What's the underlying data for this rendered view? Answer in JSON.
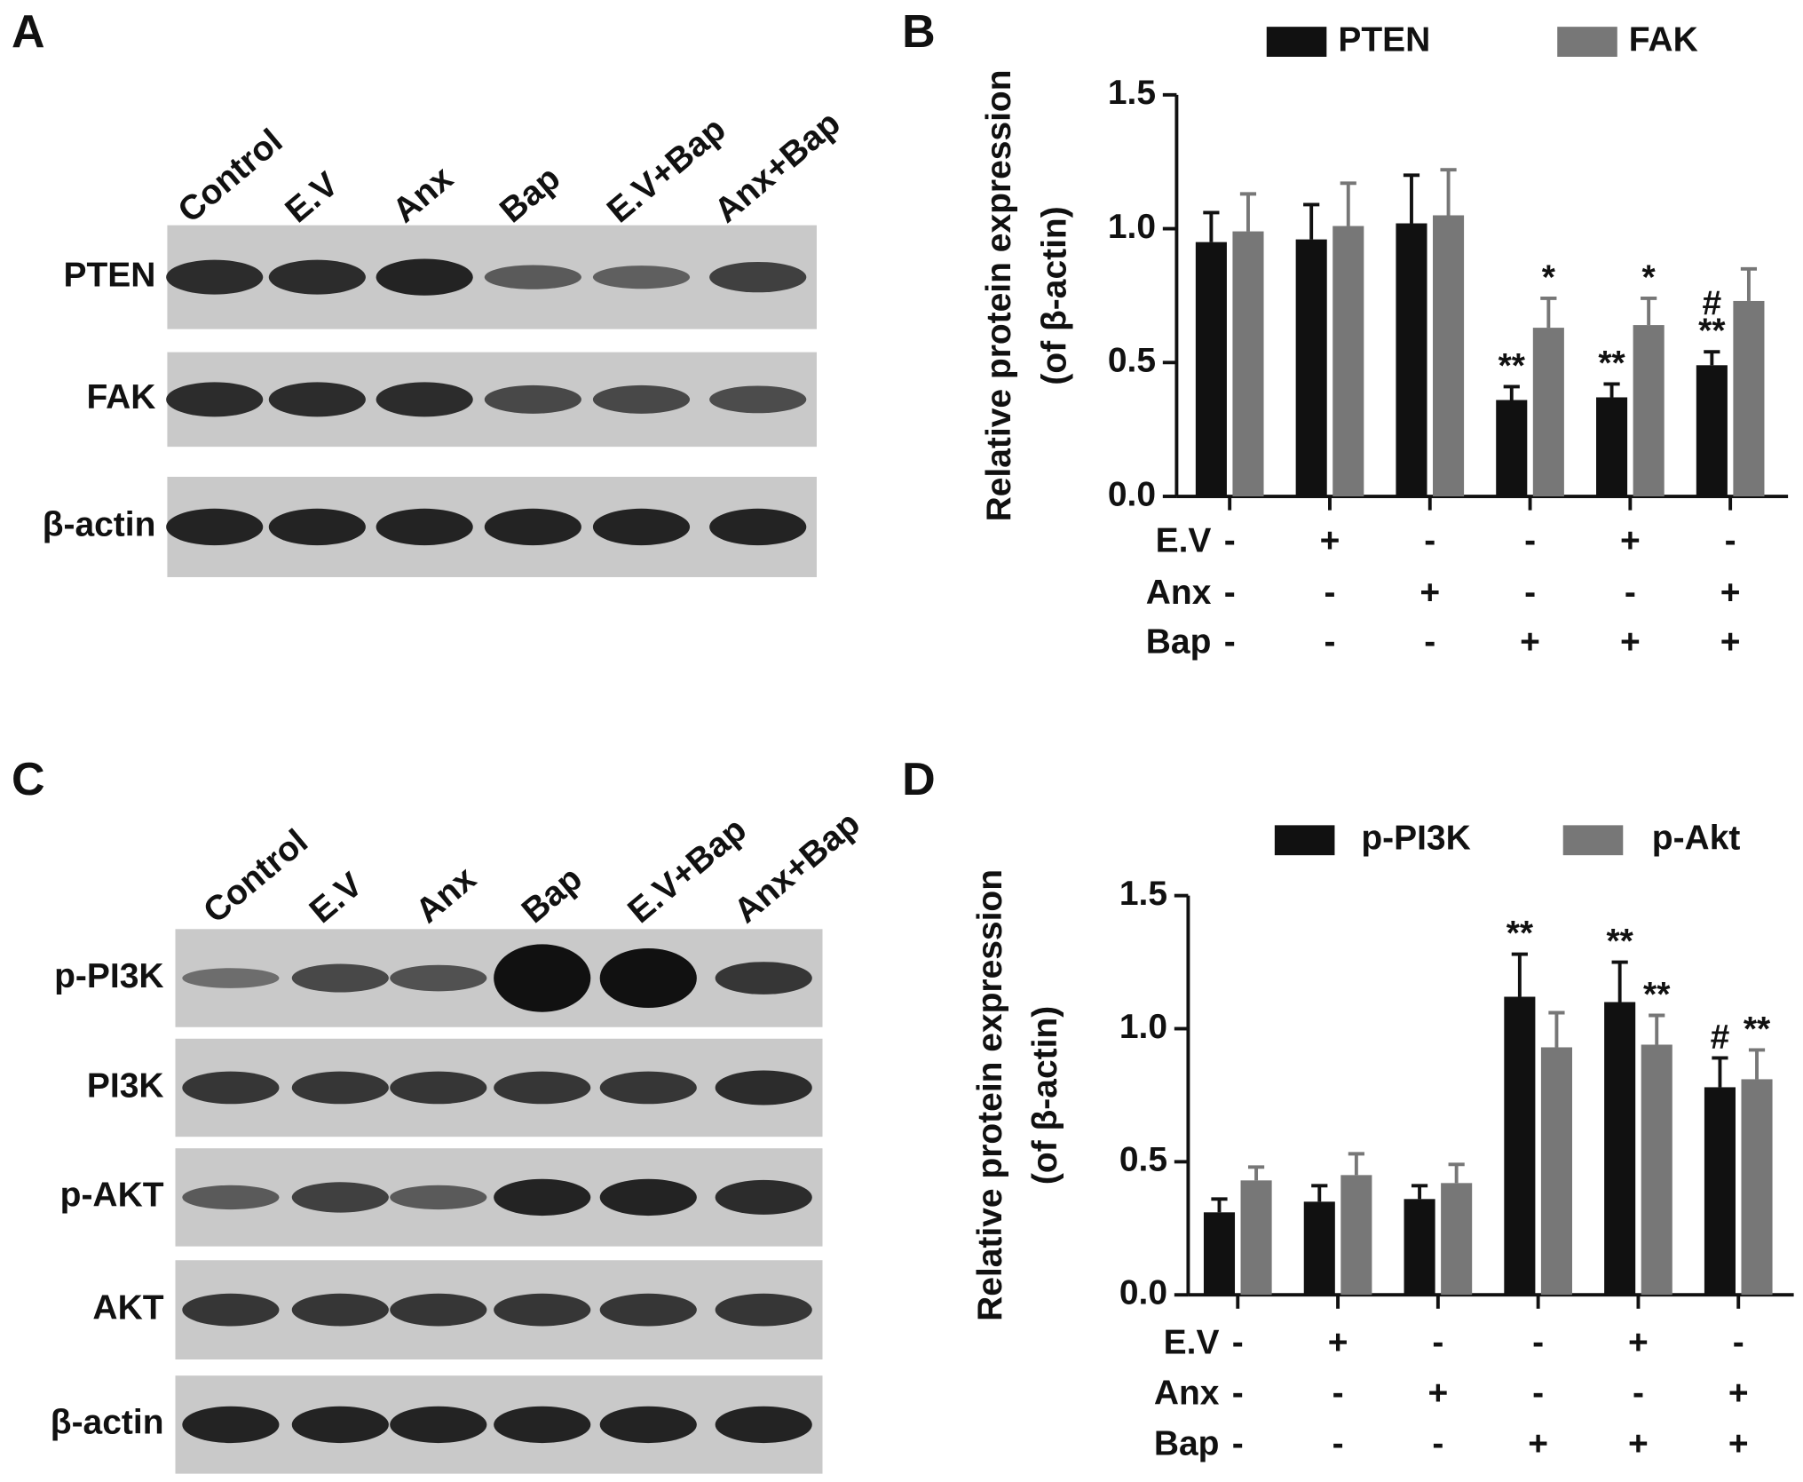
{
  "panel_labels": [
    "A",
    "B",
    "C",
    "D"
  ],
  "blots": [
    {
      "lanes": [
        "Control",
        "E.V",
        "Anx",
        "Bap",
        "E.V+Bap",
        "Anx+Bap"
      ],
      "rows": [
        "PTEN",
        "FAK",
        "β-actin"
      ]
    },
    {
      "lanes": [
        "Control",
        "E.V",
        "Anx",
        "Bap",
        "E.V+Bap",
        "Anx+Bap"
      ],
      "rows": [
        "p-PI3K",
        "PI3K",
        "p-AKT",
        "AKT",
        "β-actin"
      ]
    }
  ],
  "chart_data": [
    {
      "type": "bar",
      "ylabel": [
        "Relative protein expression",
        "(of β-actin)"
      ],
      "ylim": [
        0,
        1.5
      ],
      "yticks": [
        {
          "value": 0,
          "label": "0.0"
        },
        {
          "value": 0.5,
          "label": "0.5"
        },
        {
          "value": 1,
          "label": "1.0"
        },
        {
          "value": 1.5,
          "label": "1.5"
        }
      ],
      "series": [
        {
          "name": "PTEN",
          "color": "#111111",
          "values": [
            0.95,
            0.96,
            1.02,
            0.36,
            0.37,
            0.49
          ],
          "errors": [
            0.11,
            0.13,
            0.18,
            0.05,
            0.05,
            0.05
          ],
          "annotations": [
            null,
            null,
            null,
            [
              "**"
            ],
            [
              "**"
            ],
            [
              "#",
              "**"
            ]
          ]
        },
        {
          "name": "FAK",
          "color": "#777777",
          "values": [
            0.99,
            1.01,
            1.05,
            0.63,
            0.64,
            0.73
          ],
          "errors": [
            0.14,
            0.16,
            0.17,
            0.11,
            0.1,
            0.12
          ],
          "annotations": [
            null,
            null,
            null,
            [
              "*"
            ],
            [
              "*"
            ],
            null
          ]
        }
      ],
      "conditions": [
        {
          "name": "E.V",
          "signs": [
            "-",
            "+",
            "-",
            "-",
            "+",
            "-"
          ]
        },
        {
          "name": "Anx",
          "signs": [
            "-",
            "-",
            "+",
            "-",
            "-",
            "+"
          ]
        },
        {
          "name": "Bap",
          "signs": [
            "-",
            "-",
            "-",
            "+",
            "+",
            "+"
          ]
        }
      ]
    },
    {
      "type": "bar",
      "ylabel": [
        "Relative protein expression",
        "(of β-actin)"
      ],
      "ylim": [
        0,
        1.5
      ],
      "yticks": [
        {
          "value": 0,
          "label": "0.0"
        },
        {
          "value": 0.5,
          "label": "0.5"
        },
        {
          "value": 1,
          "label": "1.0"
        },
        {
          "value": 1.5,
          "label": "1.5"
        }
      ],
      "series": [
        {
          "name": "p-PI3K",
          "color": "#111111",
          "values": [
            0.31,
            0.35,
            0.36,
            1.12,
            1.1,
            0.78
          ],
          "errors": [
            0.05,
            0.06,
            0.05,
            0.16,
            0.15,
            0.11
          ],
          "annotations": [
            null,
            null,
            null,
            [
              "**"
            ],
            [
              "**"
            ],
            [
              "#"
            ]
          ]
        },
        {
          "name": "p-Akt",
          "color": "#777777",
          "values": [
            0.43,
            0.45,
            0.42,
            0.93,
            0.94,
            0.81
          ],
          "errors": [
            0.05,
            0.08,
            0.07,
            0.13,
            0.11,
            0.11
          ],
          "annotations": [
            null,
            null,
            null,
            null,
            [
              "**"
            ],
            [
              "**"
            ]
          ]
        }
      ],
      "conditions": [
        {
          "name": "E.V",
          "signs": [
            "-",
            "+",
            "-",
            "-",
            "+",
            "-"
          ]
        },
        {
          "name": "Anx",
          "signs": [
            "-",
            "-",
            "+",
            "-",
            "-",
            "+"
          ]
        },
        {
          "name": "Bap",
          "signs": [
            "-",
            "-",
            "-",
            "+",
            "+",
            "+"
          ]
        }
      ]
    }
  ]
}
